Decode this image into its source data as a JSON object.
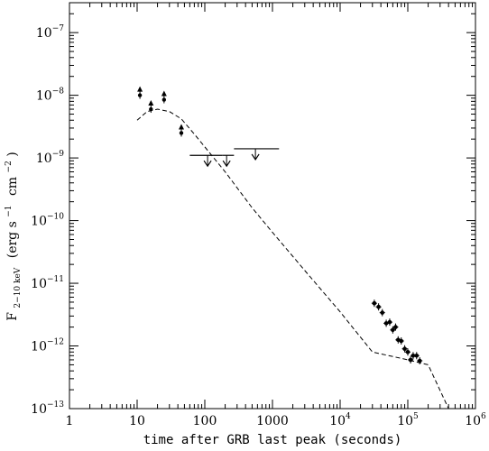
{
  "chart_data": {
    "type": "scatter",
    "title": "",
    "xlabel": "time after GRB last peak (seconds)",
    "ylabel": {
      "main": "F",
      "subscript": "2−10 keV",
      "units": "(erg s",
      "s_exp": "−1",
      "cm": "cm",
      "cm_exp": "−2",
      "close": ")"
    },
    "xscale": "log",
    "yscale": "log",
    "xlim": [
      1,
      1000000
    ],
    "ylim": [
      1e-13,
      3e-07
    ],
    "x_ticks": [
      {
        "value": 1,
        "label": "1",
        "base": "",
        "exp": ""
      },
      {
        "value": 10,
        "label": "10",
        "base": "",
        "exp": ""
      },
      {
        "value": 100,
        "label": "100",
        "base": "",
        "exp": ""
      },
      {
        "value": 1000,
        "label": "1000",
        "base": "",
        "exp": ""
      },
      {
        "value": 10000,
        "label": "",
        "base": "10",
        "exp": "4"
      },
      {
        "value": 100000,
        "label": "",
        "base": "10",
        "exp": "5"
      },
      {
        "value": 1000000,
        "label": "",
        "base": "10",
        "exp": "6"
      }
    ],
    "y_ticks": [
      {
        "value": 1e-13,
        "base": "10",
        "exp": "−13"
      },
      {
        "value": 1e-12,
        "base": "10",
        "exp": "−12"
      },
      {
        "value": 1e-11,
        "base": "10",
        "exp": "−11"
      },
      {
        "value": 1e-10,
        "base": "10",
        "exp": "−10"
      },
      {
        "value": 1e-09,
        "base": "10",
        "exp": "−9"
      },
      {
        "value": 1e-08,
        "base": "10",
        "exp": "−8"
      },
      {
        "value": 1e-07,
        "base": "10",
        "exp": "−7"
      }
    ],
    "series": [
      {
        "kind": "lower_limits",
        "points": [
          {
            "x": 11,
            "y": 1e-08
          },
          {
            "x": 16,
            "y": 6e-09
          },
          {
            "x": 25,
            "y": 8.5e-09
          },
          {
            "x": 45,
            "y": 2.5e-09
          }
        ]
      },
      {
        "kind": "upper_limits",
        "points": [
          {
            "x": 110,
            "y": 1.1e-09,
            "x_min": 60,
            "x_max": 180
          },
          {
            "x": 210,
            "y": 1.1e-09,
            "x_min": 180,
            "x_max": 270
          },
          {
            "x": 560,
            "y": 1.4e-09,
            "x_min": 270,
            "x_max": 1250
          }
        ]
      },
      {
        "kind": "detections",
        "points": [
          {
            "x": 32000,
            "y": 4.8e-12
          },
          {
            "x": 37000,
            "y": 4.2e-12
          },
          {
            "x": 42000,
            "y": 3.4e-12
          },
          {
            "x": 48000,
            "y": 2.3e-12
          },
          {
            "x": 54000,
            "y": 2.4e-12
          },
          {
            "x": 60000,
            "y": 1.8e-12
          },
          {
            "x": 66000,
            "y": 2e-12
          },
          {
            "x": 72000,
            "y": 1.25e-12
          },
          {
            "x": 80000,
            "y": 1.2e-12
          },
          {
            "x": 90000,
            "y": 9e-13
          },
          {
            "x": 100000,
            "y": 8e-13
          },
          {
            "x": 110000,
            "y": 6e-13
          },
          {
            "x": 120000,
            "y": 7e-13
          },
          {
            "x": 135000,
            "y": 7e-13
          },
          {
            "x": 150000,
            "y": 5.8e-13
          }
        ]
      },
      {
        "kind": "model_curve",
        "style": "dashed",
        "points": [
          {
            "x": 10,
            "y": 4e-09
          },
          {
            "x": 14,
            "y": 5.5e-09
          },
          {
            "x": 20,
            "y": 6e-09
          },
          {
            "x": 30,
            "y": 5.5e-09
          },
          {
            "x": 45,
            "y": 4.2e-09
          },
          {
            "x": 70,
            "y": 2.4e-09
          },
          {
            "x": 100,
            "y": 1.5e-09
          },
          {
            "x": 200,
            "y": 6e-10
          },
          {
            "x": 500,
            "y": 1.6e-10
          },
          {
            "x": 1000,
            "y": 6.5e-11
          },
          {
            "x": 3000,
            "y": 1.6e-11
          },
          {
            "x": 10000,
            "y": 3.5e-12
          },
          {
            "x": 30000,
            "y": 8e-13
          },
          {
            "x": 100000,
            "y": 6e-13
          },
          {
            "x": 200000,
            "y": 5e-13
          },
          {
            "x": 400000,
            "y": 1e-13
          }
        ]
      }
    ],
    "colors": {
      "foreground": "#000000",
      "background": "#ffffff"
    }
  }
}
